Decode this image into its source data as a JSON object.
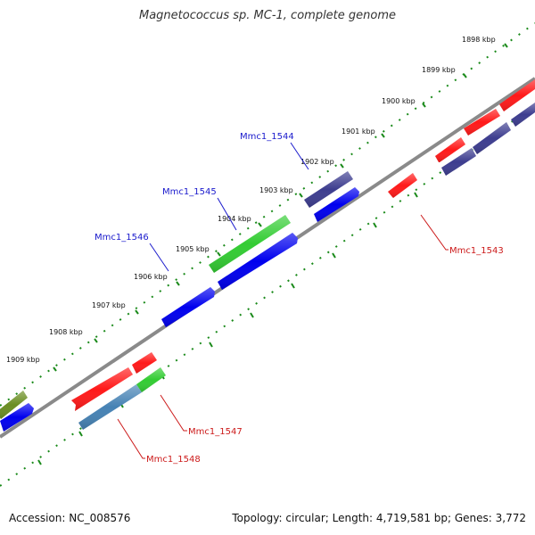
{
  "title": "Magnetococcus sp. MC-1, complete genome",
  "footer": {
    "accession": "Accession: NC_008576",
    "summary": "Topology: circular; Length: 4,719,581 bp; Genes: 3,772"
  },
  "colors": {
    "backbone": "#888888",
    "tick": "#1a8a1a",
    "forward_gene": "#1a1acc",
    "reverse_gene": "#cc1a1a",
    "red_cds": "#ff1a1a",
    "blue_cds": "#0000ee",
    "purple_cds": "#3d3d8f",
    "green_cds": "#2ecc2e",
    "olive_cds": "#6b8e23",
    "steel_cds": "#4682b4"
  },
  "ruler_labels": [
    "1898 kbp",
    "1899 kbp",
    "1900 kbp",
    "1901 kbp",
    "1902 kbp",
    "1903 kbp",
    "1904 kbp",
    "1905 kbp",
    "1906 kbp",
    "1907 kbp",
    "1908 kbp",
    "1909 kbp"
  ],
  "gene_labels": {
    "upper": [
      "Mmc1_1544",
      "Mmc1_1545",
      "Mmc1_1546"
    ],
    "lower": [
      "Mmc1_1543",
      "Mmc1_1547",
      "Mmc1_1548"
    ]
  }
}
